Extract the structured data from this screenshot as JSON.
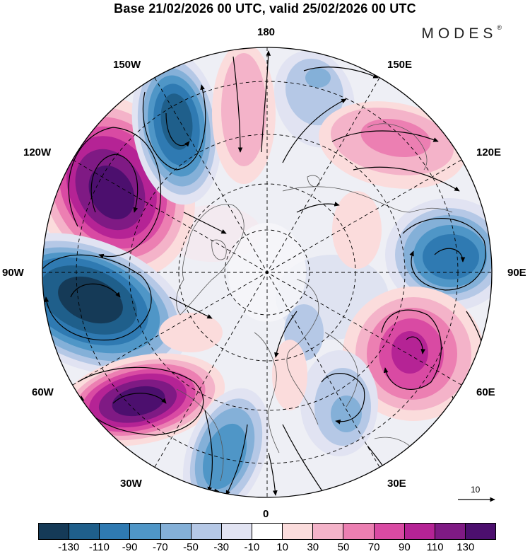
{
  "title": "Base 21/02/2026 00 UTC, valid 25/02/2026 00 UTC",
  "brand": {
    "name": "MODES",
    "mark": "®"
  },
  "longitude_labels": {
    "lon_180": "180",
    "lon_150e": "150E",
    "lon_120e": "120E",
    "lon_90e": "90E",
    "lon_60e": "60E",
    "lon_30e": "30E",
    "lon_0": "0",
    "lon_30w": "30W",
    "lon_60w": "60W",
    "lon_90w": "90W",
    "lon_120w": "120W",
    "lon_150w": "150W"
  },
  "reference_vector": {
    "value": "10"
  },
  "colorbar": {
    "colors": [
      "#153a57",
      "#1f5f8b",
      "#2f7ab2",
      "#4f96c7",
      "#84b0d8",
      "#b5c8e6",
      "#e1e3f2",
      "#ffffff",
      "#fbdcdc",
      "#f4b3c9",
      "#ec7fb2",
      "#d94aa3",
      "#b52395",
      "#7f1a84",
      "#4c0f6e"
    ],
    "tick_labels": [
      "-130",
      "-110",
      "-90",
      "-70",
      "-50",
      "-30",
      "-10",
      "10",
      "30",
      "50",
      "70",
      "90",
      "110",
      "130"
    ]
  },
  "anomaly_centers": [
    {
      "name": "anomaly-positive-120w",
      "sign": "positive",
      "value": 130
    },
    {
      "name": "anomaly-negative-150w",
      "sign": "negative",
      "value": -120
    },
    {
      "name": "anomaly-negative-90w",
      "sign": "negative",
      "value": -130
    },
    {
      "name": "anomaly-positive-60w",
      "sign": "positive",
      "value": 130
    },
    {
      "name": "anomaly-negative-30w",
      "sign": "negative",
      "value": -80
    },
    {
      "name": "anomaly-positive-180",
      "sign": "positive",
      "value": 40
    },
    {
      "name": "anomaly-negative-160e",
      "sign": "negative",
      "value": -40
    },
    {
      "name": "anomaly-positive-135e",
      "sign": "positive",
      "value": 60
    },
    {
      "name": "anomaly-negative-90e",
      "sign": "negative",
      "value": -100
    },
    {
      "name": "anomaly-positive-60e",
      "sign": "positive",
      "value": 110
    },
    {
      "name": "anomaly-negative-40e",
      "sign": "negative",
      "value": -50
    },
    {
      "name": "anomaly-positive-20e",
      "sign": "positive",
      "value": 30
    }
  ]
}
